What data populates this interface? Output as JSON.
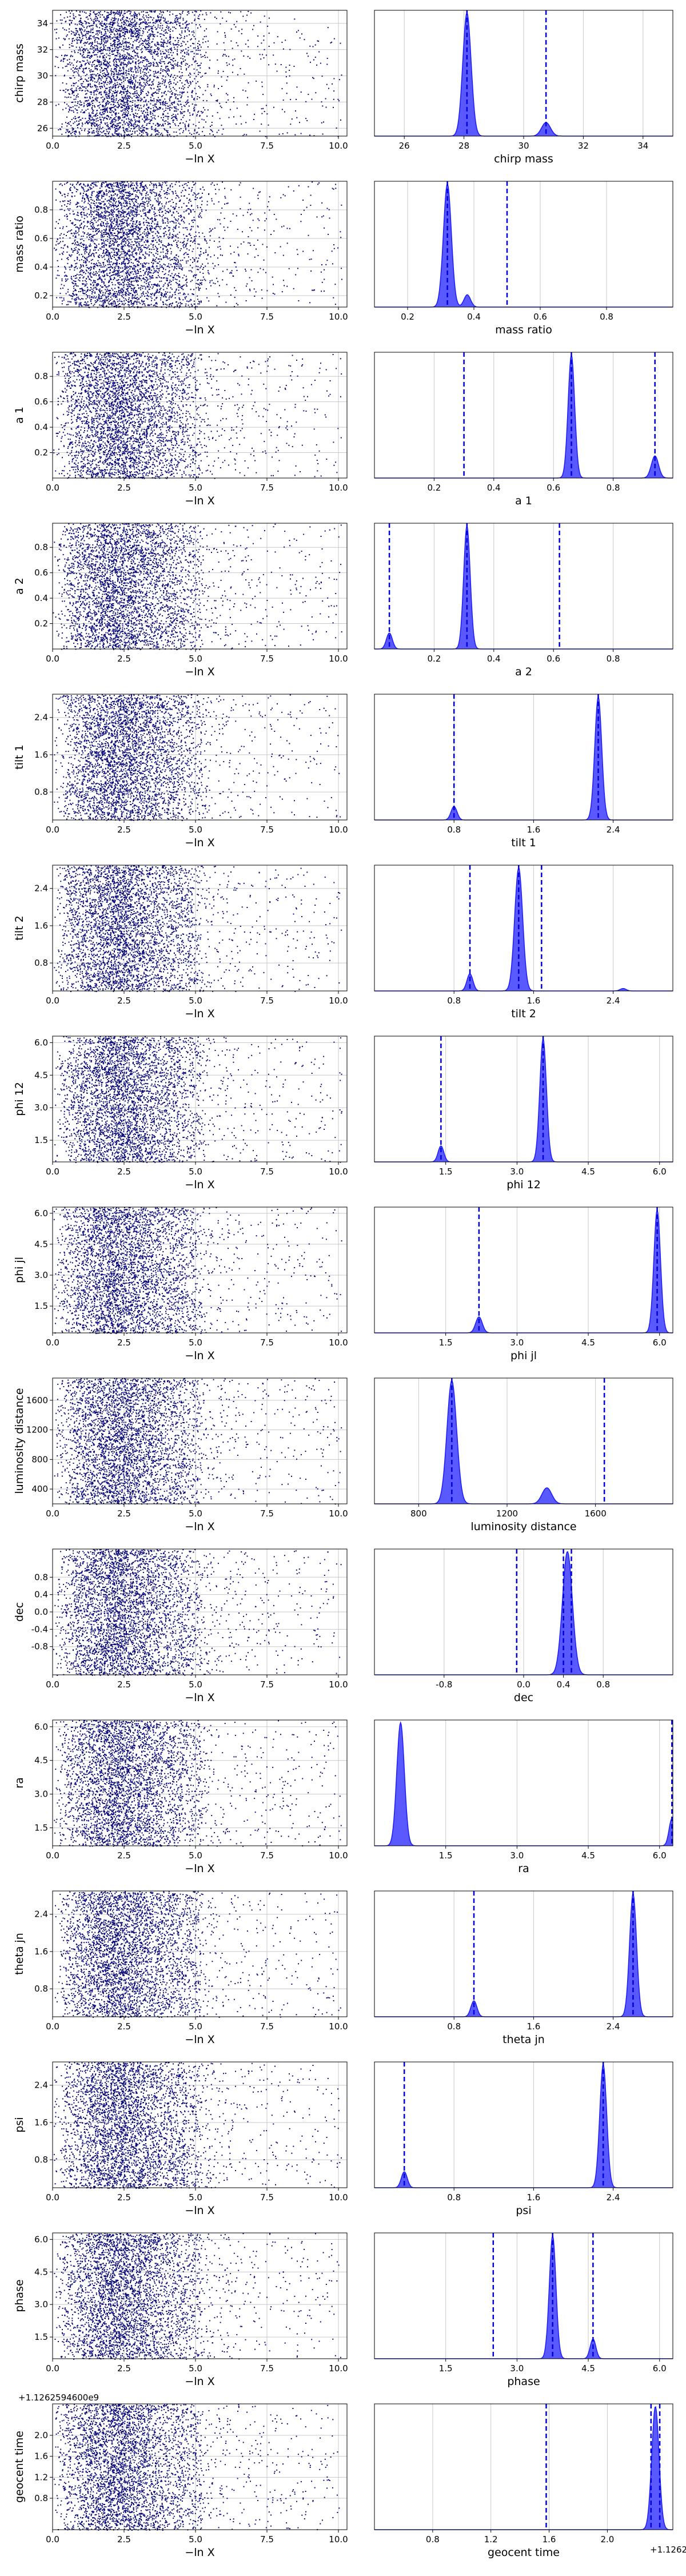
{
  "figure": {
    "type": "nested-sampling trace plot",
    "colors": {
      "samples": "#0b0b7a",
      "kde_fill": "#4747ff",
      "kde_line": "#1a1aff",
      "quantile_line": "#0000dd",
      "grid": "#c8c8c8"
    }
  },
  "chart_data": [
    {
      "type": "scatter",
      "parameter": "chirp mass",
      "xlabel": "−ln X",
      "ylabel": "chirp mass",
      "xlim": [
        0,
        10.3
      ],
      "xticks": [
        "0.0",
        "2.5",
        "5.0",
        "7.5",
        "10.0"
      ],
      "ylim": [
        25.4,
        35
      ],
      "yticks": [
        "26",
        "28",
        "30",
        "32",
        "34"
      ],
      "grid": true
    },
    {
      "type": "area",
      "parameter": "chirp mass",
      "xlabel": "chirp mass",
      "xlim": [
        25,
        35
      ],
      "xticks": [
        "26",
        "28",
        "30",
        "32",
        "34"
      ],
      "peaks": [
        {
          "x": 28.1,
          "width": 0.14,
          "height": 1.0
        },
        {
          "x": 30.75,
          "width": 0.15,
          "height": 0.11
        }
      ],
      "quantiles": [
        28.1,
        30.75
      ],
      "grid": true
    },
    {
      "type": "scatter",
      "parameter": "mass ratio",
      "xlabel": "−ln X",
      "ylabel": "mass ratio",
      "xlim": [
        0,
        10.3
      ],
      "xticks": [
        "0.0",
        "2.5",
        "5.0",
        "7.5",
        "10.0"
      ],
      "ylim": [
        0.12,
        1.0
      ],
      "yticks": [
        "0.2",
        "0.4",
        "0.6",
        "0.8"
      ],
      "grid": true
    },
    {
      "type": "area",
      "parameter": "mass ratio",
      "xlabel": "mass ratio",
      "xlim": [
        0.1,
        1.0
      ],
      "xticks": [
        "0.2",
        "0.4",
        "0.6",
        "0.8"
      ],
      "peaks": [
        {
          "x": 0.32,
          "width": 0.012,
          "height": 1.0
        },
        {
          "x": 0.38,
          "width": 0.01,
          "height": 0.1
        }
      ],
      "quantiles": [
        0.32,
        0.5
      ],
      "grid": true
    },
    {
      "type": "scatter",
      "parameter": "a 1",
      "xlabel": "−ln X",
      "ylabel": "a 1",
      "xlim": [
        0,
        10.3
      ],
      "xticks": [
        "0.0",
        "2.5",
        "5.0",
        "7.5",
        "10.0"
      ],
      "ylim": [
        0,
        0.99
      ],
      "yticks": [
        "0.2",
        "0.4",
        "0.6",
        "0.8"
      ],
      "grid": true
    },
    {
      "type": "area",
      "parameter": "a 1",
      "xlabel": "a 1",
      "xlim": [
        0,
        1.0
      ],
      "xticks": [
        "0.2",
        "0.4",
        "0.6",
        "0.8"
      ],
      "peaks": [
        {
          "x": 0.66,
          "width": 0.011,
          "height": 1.0
        },
        {
          "x": 0.94,
          "width": 0.012,
          "height": 0.18
        }
      ],
      "quantiles": [
        0.3,
        0.66,
        0.94
      ],
      "grid": true
    },
    {
      "type": "scatter",
      "parameter": "a 2",
      "xlabel": "−ln X",
      "ylabel": "a 2",
      "xlim": [
        0,
        10.3
      ],
      "xticks": [
        "0.0",
        "2.5",
        "5.0",
        "7.5",
        "10.0"
      ],
      "ylim": [
        0,
        0.99
      ],
      "yticks": [
        "0.2",
        "0.4",
        "0.6",
        "0.8"
      ],
      "grid": true
    },
    {
      "type": "area",
      "parameter": "a 2",
      "xlabel": "a 2",
      "xlim": [
        0,
        1.0
      ],
      "xticks": [
        "0.2",
        "0.4",
        "0.6",
        "0.8"
      ],
      "peaks": [
        {
          "x": 0.31,
          "width": 0.011,
          "height": 1.0
        },
        {
          "x": 0.05,
          "width": 0.01,
          "height": 0.13
        }
      ],
      "quantiles": [
        0.05,
        0.31,
        0.62
      ],
      "grid": true
    },
    {
      "type": "scatter",
      "parameter": "tilt 1",
      "xlabel": "−ln X",
      "ylabel": "tilt 1",
      "xlim": [
        0,
        10.3
      ],
      "xticks": [
        "0.0",
        "2.5",
        "5.0",
        "7.5",
        "10.0"
      ],
      "ylim": [
        0.2,
        2.9
      ],
      "yticks": [
        "0.8",
        "1.6",
        "2.4"
      ],
      "grid": true
    },
    {
      "type": "area",
      "parameter": "tilt 1",
      "xlabel": "tilt 1",
      "xlim": [
        0,
        3.0
      ],
      "xticks": [
        "0.8",
        "1.6",
        "2.4"
      ],
      "peaks": [
        {
          "x": 2.25,
          "width": 0.035,
          "height": 1.0
        },
        {
          "x": 0.8,
          "width": 0.03,
          "height": 0.11
        }
      ],
      "quantiles": [
        0.8,
        2.25
      ],
      "grid": true
    },
    {
      "type": "scatter",
      "parameter": "tilt 2",
      "xlabel": "−ln X",
      "ylabel": "tilt 2",
      "xlim": [
        0,
        10.3
      ],
      "xticks": [
        "0.0",
        "2.5",
        "5.0",
        "7.5",
        "10.0"
      ],
      "ylim": [
        0.2,
        2.9
      ],
      "yticks": [
        "0.8",
        "1.6",
        "2.4"
      ],
      "grid": true
    },
    {
      "type": "area",
      "parameter": "tilt 2",
      "xlabel": "tilt 2",
      "xlim": [
        0,
        3.0
      ],
      "xticks": [
        "0.8",
        "1.6",
        "2.4"
      ],
      "peaks": [
        {
          "x": 1.45,
          "width": 0.04,
          "height": 1.0
        },
        {
          "x": 0.96,
          "width": 0.03,
          "height": 0.14
        },
        {
          "x": 2.5,
          "width": 0.03,
          "height": 0.02
        }
      ],
      "quantiles": [
        0.96,
        1.45,
        1.68
      ],
      "grid": true
    },
    {
      "type": "scatter",
      "parameter": "phi 12",
      "xlabel": "−ln X",
      "ylabel": "phi 12",
      "xlim": [
        0,
        10.3
      ],
      "xticks": [
        "0.0",
        "2.5",
        "5.0",
        "7.5",
        "10.0"
      ],
      "ylim": [
        0.5,
        6.3
      ],
      "yticks": [
        "1.5",
        "3.0",
        "4.5",
        "6.0"
      ],
      "grid": true
    },
    {
      "type": "area",
      "parameter": "phi 12",
      "xlabel": "phi 12",
      "xlim": [
        0,
        6.28
      ],
      "xticks": [
        "1.5",
        "3.0",
        "4.5",
        "6.0"
      ],
      "peaks": [
        {
          "x": 3.55,
          "width": 0.07,
          "height": 1.0
        },
        {
          "x": 1.4,
          "width": 0.06,
          "height": 0.13
        }
      ],
      "quantiles": [
        1.4,
        3.55
      ],
      "grid": true
    },
    {
      "type": "scatter",
      "parameter": "phi jl",
      "xlabel": "−ln X",
      "ylabel": "phi jl",
      "xlim": [
        0,
        10.3
      ],
      "xticks": [
        "0.0",
        "2.5",
        "5.0",
        "7.5",
        "10.0"
      ],
      "ylim": [
        0.2,
        6.3
      ],
      "yticks": [
        "1.5",
        "3.0",
        "4.5",
        "6.0"
      ],
      "grid": true
    },
    {
      "type": "area",
      "parameter": "phi jl",
      "xlabel": "phi jl",
      "xlim": [
        0,
        6.28
      ],
      "xticks": [
        "1.5",
        "3.0",
        "4.5",
        "6.0"
      ],
      "peaks": [
        {
          "x": 5.95,
          "width": 0.07,
          "height": 1.0
        },
        {
          "x": 2.2,
          "width": 0.07,
          "height": 0.13
        }
      ],
      "quantiles": [
        2.2,
        5.95
      ],
      "grid": true
    },
    {
      "type": "scatter",
      "parameter": "luminosity distance",
      "xlabel": "−ln X",
      "ylabel": "luminosity distance",
      "xlim": [
        0,
        10.3
      ],
      "xticks": [
        "0.0",
        "2.5",
        "5.0",
        "7.5",
        "10.0"
      ],
      "ylim": [
        200,
        1900
      ],
      "yticks": [
        "400",
        "800",
        "1200",
        "1600"
      ],
      "grid": true
    },
    {
      "type": "area",
      "parameter": "luminosity distance",
      "xlabel": "luminosity distance",
      "xlim": [
        600,
        1950
      ],
      "xticks": [
        "800",
        "1200",
        "1600"
      ],
      "peaks": [
        {
          "x": 950,
          "width": 22,
          "height": 1.0
        },
        {
          "x": 1380,
          "width": 22,
          "height": 0.13
        }
      ],
      "quantiles": [
        950,
        1640
      ],
      "grid": true
    },
    {
      "type": "scatter",
      "parameter": "dec",
      "xlabel": "−ln X",
      "ylabel": "dec",
      "xlim": [
        0,
        10.3
      ],
      "xticks": [
        "0.0",
        "2.5",
        "5.0",
        "7.5",
        "10.0"
      ],
      "ylim": [
        -1.45,
        1.45
      ],
      "yticks": [
        "-0.8",
        "-0.4",
        "0.0",
        "0.4",
        "0.8"
      ],
      "grid": true
    },
    {
      "type": "area",
      "parameter": "dec",
      "xlabel": "dec",
      "xlim": [
        -1.5,
        1.5
      ],
      "xticks": [
        "-0.8",
        "0.0",
        "0.4",
        "0.8"
      ],
      "peaks": [
        {
          "x": 0.44,
          "width": 0.05,
          "height": 1.0
        }
      ],
      "quantiles": [
        -0.07,
        0.4,
        0.48
      ],
      "grid": true
    },
    {
      "type": "scatter",
      "parameter": "ra",
      "xlabel": "−ln X",
      "ylabel": "ra",
      "xlim": [
        0,
        10.3
      ],
      "xticks": [
        "0.0",
        "2.5",
        "5.0",
        "7.5",
        "10.0"
      ],
      "ylim": [
        0.7,
        6.3
      ],
      "yticks": [
        "1.5",
        "3.0",
        "4.5",
        "6.0"
      ],
      "grid": true
    },
    {
      "type": "area",
      "parameter": "ra",
      "xlabel": "ra",
      "xlim": [
        0,
        6.28
      ],
      "xticks": [
        "1.5",
        "3.0",
        "4.5",
        "6.0"
      ],
      "peaks": [
        {
          "x": 0.55,
          "width": 0.08,
          "height": 1.0
        },
        {
          "x": 6.26,
          "width": 0.06,
          "height": 0.22
        }
      ],
      "quantiles": [
        6.26
      ],
      "grid": true
    },
    {
      "type": "scatter",
      "parameter": "theta jn",
      "xlabel": "−ln X",
      "ylabel": "theta jn",
      "xlim": [
        0,
        10.3
      ],
      "xticks": [
        "0.0",
        "2.5",
        "5.0",
        "7.5",
        "10.0"
      ],
      "ylim": [
        0.2,
        2.9
      ],
      "yticks": [
        "0.8",
        "1.6",
        "2.4"
      ],
      "grid": true
    },
    {
      "type": "area",
      "parameter": "theta jn",
      "xlabel": "theta jn",
      "xlim": [
        0,
        3.0
      ],
      "xticks": [
        "0.8",
        "1.6",
        "2.4"
      ],
      "peaks": [
        {
          "x": 2.6,
          "width": 0.035,
          "height": 1.0
        },
        {
          "x": 1.0,
          "width": 0.03,
          "height": 0.13
        }
      ],
      "quantiles": [
        1.0,
        2.6
      ],
      "grid": true
    },
    {
      "type": "scatter",
      "parameter": "psi",
      "xlabel": "−ln X",
      "ylabel": "psi",
      "xlim": [
        0,
        10.3
      ],
      "xticks": [
        "0.0",
        "2.5",
        "5.0",
        "7.5",
        "10.0"
      ],
      "ylim": [
        0.2,
        2.9
      ],
      "yticks": [
        "0.8",
        "1.6",
        "2.4"
      ],
      "grid": true
    },
    {
      "type": "area",
      "parameter": "psi",
      "xlabel": "psi",
      "xlim": [
        0,
        3.0
      ],
      "xticks": [
        "0.8",
        "1.6",
        "2.4"
      ],
      "peaks": [
        {
          "x": 2.3,
          "width": 0.035,
          "height": 1.0
        },
        {
          "x": 0.3,
          "width": 0.03,
          "height": 0.13
        }
      ],
      "quantiles": [
        0.3,
        2.3
      ],
      "grid": true
    },
    {
      "type": "scatter",
      "parameter": "phase",
      "xlabel": "−ln X",
      "ylabel": "phase",
      "xlim": [
        0,
        10.3
      ],
      "xticks": [
        "0.0",
        "2.5",
        "5.0",
        "7.5",
        "10.0"
      ],
      "ylim": [
        0.5,
        6.3
      ],
      "yticks": [
        "1.5",
        "3.0",
        "4.5",
        "6.0"
      ],
      "grid": true
    },
    {
      "type": "area",
      "parameter": "phase",
      "xlabel": "phase",
      "xlim": [
        0,
        6.28
      ],
      "xticks": [
        "1.5",
        "3.0",
        "4.5",
        "6.0"
      ],
      "peaks": [
        {
          "x": 3.75,
          "width": 0.07,
          "height": 1.0
        },
        {
          "x": 4.6,
          "width": 0.06,
          "height": 0.16
        }
      ],
      "quantiles": [
        2.5,
        3.75,
        4.6
      ],
      "grid": true
    },
    {
      "type": "scatter",
      "parameter": "geocent time",
      "xlabel": "−ln X",
      "ylabel": "geocent time",
      "xlim": [
        0,
        10.3
      ],
      "xticks": [
        "0.0",
        "2.5",
        "5.0",
        "7.5",
        "10.0"
      ],
      "ylim": [
        0.2,
        2.6
      ],
      "yticks": [
        "0.8",
        "1.2",
        "1.6",
        "2.0"
      ],
      "offset_label": "+1.1262594600e9",
      "grid": true
    },
    {
      "type": "area",
      "parameter": "geocent time",
      "xlabel": "geocent time",
      "xlim": [
        0.4,
        2.45
      ],
      "xticks": [
        "0.8",
        "1.2",
        "1.6",
        "2.0"
      ],
      "offset_label": "+1.1262594600e9",
      "peaks": [
        {
          "x": 2.33,
          "width": 0.025,
          "height": 1.0
        }
      ],
      "quantiles": [
        1.58,
        2.3,
        2.36
      ],
      "grid": true
    }
  ]
}
